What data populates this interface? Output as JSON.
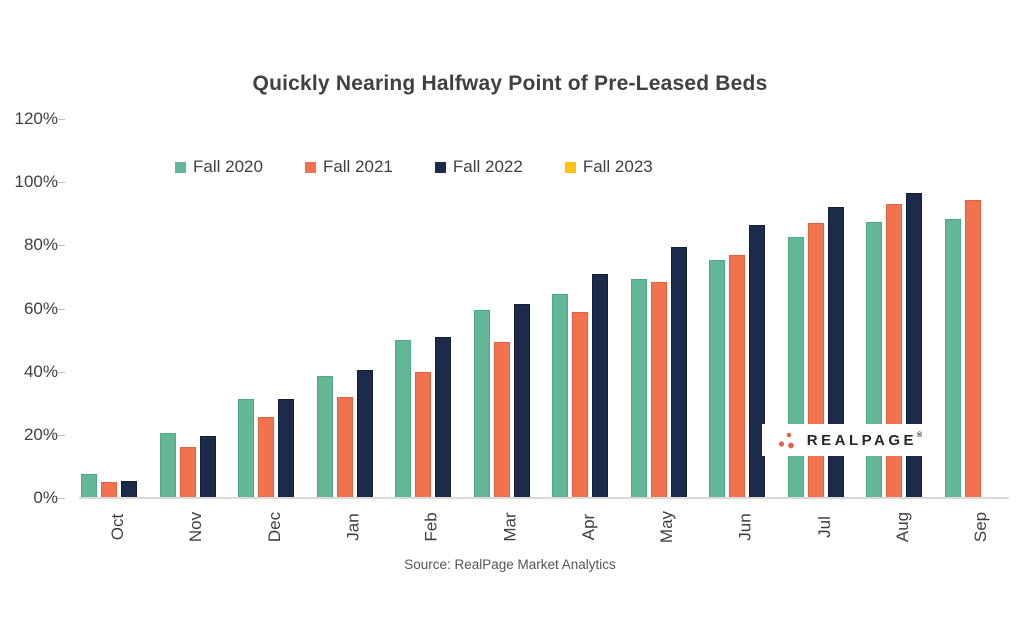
{
  "chart_data": {
    "type": "bar",
    "title": "Quickly Nearing Halfway Point of Pre-Leased Beds",
    "categories": [
      "Oct",
      "Nov",
      "Dec",
      "Jan",
      "Feb",
      "Mar",
      "Apr",
      "May",
      "Jun",
      "Jul",
      "Aug",
      "Sep"
    ],
    "series": [
      {
        "name": "Fall 2020",
        "color": "#63B797",
        "border": "#4FA886",
        "values": [
          7.5,
          20.5,
          31.5,
          38.5,
          50,
          59.5,
          64.5,
          69.5,
          75.5,
          82.5,
          87.5,
          88.5
        ]
      },
      {
        "name": "Fall 2021",
        "color": "#F0724F",
        "border": "#E5603C",
        "values": [
          5,
          16,
          25.5,
          32,
          40,
          49.5,
          59,
          68.5,
          77,
          87,
          93,
          94.5
        ]
      },
      {
        "name": "Fall 2022",
        "color": "#1B2B49",
        "border": "#121F38",
        "values": [
          5.5,
          19.5,
          31.5,
          40.5,
          51,
          61.5,
          71,
          79.5,
          86.5,
          92,
          96.5,
          null
        ]
      },
      {
        "name": "Fall 2023",
        "color": "#FFC20E",
        "border": "#E5AE00",
        "values": [
          null,
          null,
          null,
          null,
          null,
          null,
          null,
          null,
          null,
          null,
          null,
          null
        ]
      }
    ],
    "ylabel": "",
    "xlabel": "",
    "ylim": [
      0,
      120
    ],
    "ytick_labels": [
      "0%",
      "20%",
      "40%",
      "60%",
      "80%",
      "100%",
      "120%"
    ],
    "grid": "off",
    "legend_position": "top-left-of-plot",
    "source": "Source: RealPage Market Analytics"
  },
  "watermark": {
    "wordmark": "REALPAGE",
    "mark": "®",
    "dots_color": "#E8614D"
  },
  "colors": {
    "axis_line": "#DADADA",
    "tick": "#BFBFBF",
    "text": "#404040",
    "background": "#FFFFFF"
  }
}
